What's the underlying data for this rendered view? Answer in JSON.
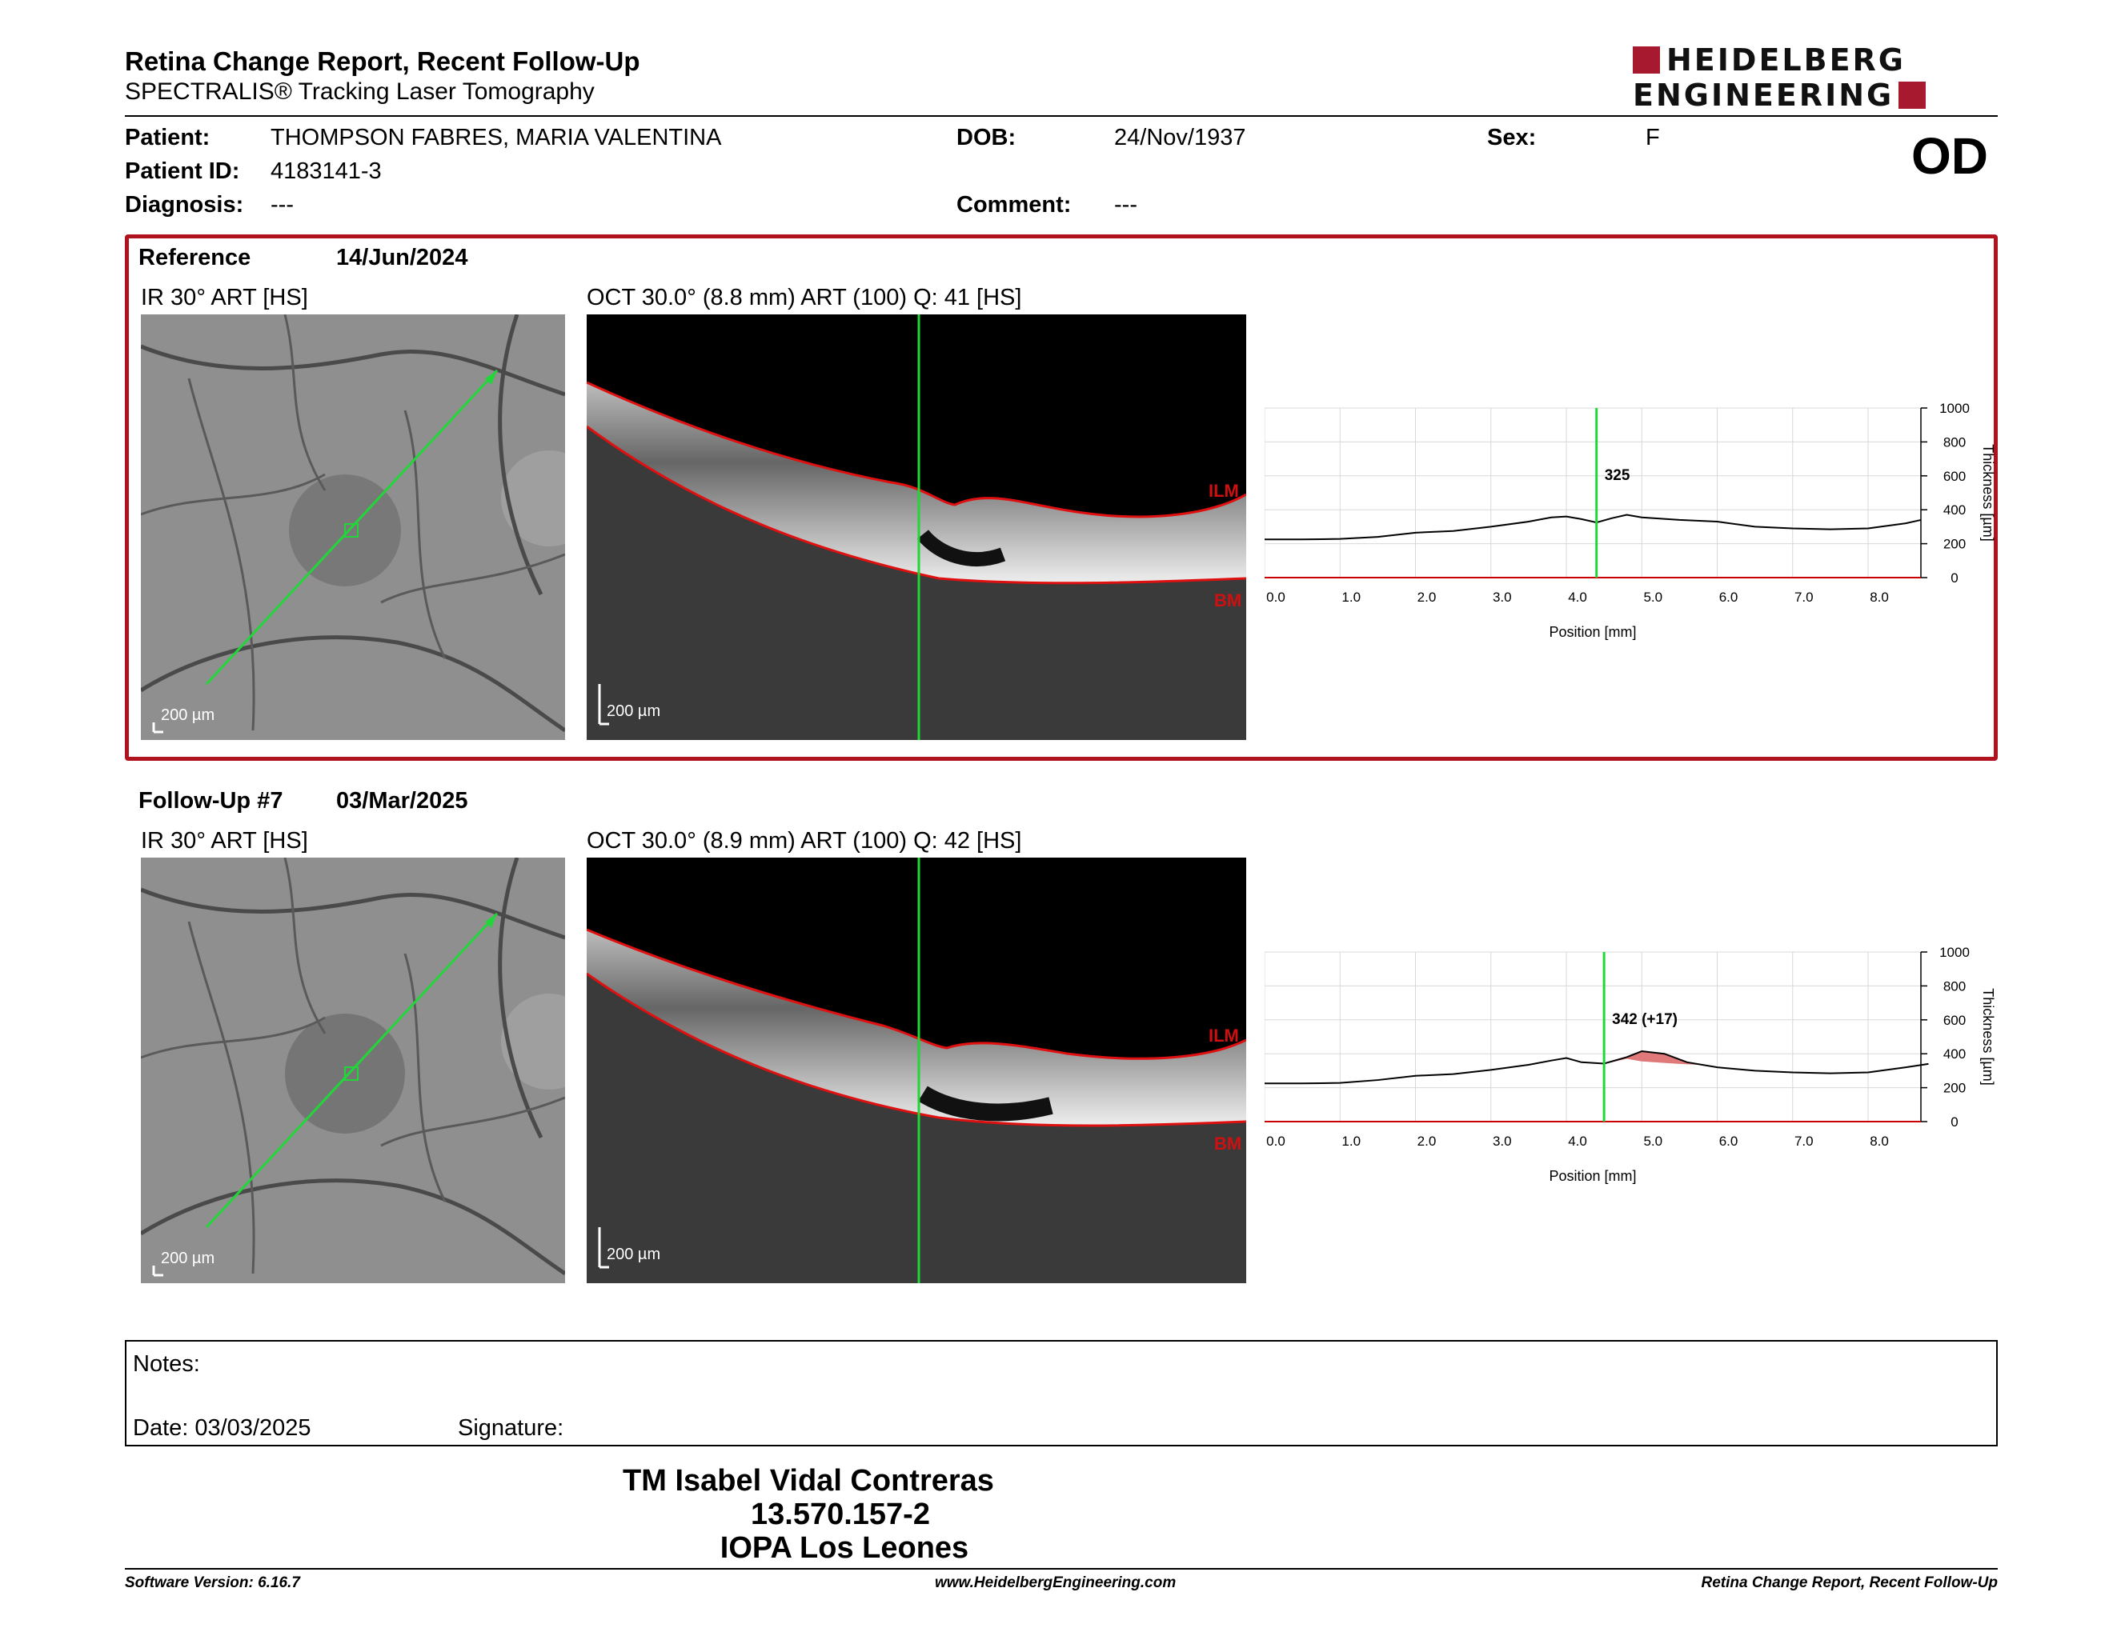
{
  "header": {
    "title": "Retina Change Report, Recent Follow-Up",
    "subtitle": "SPECTRALIS® Tracking Laser Tomography",
    "logo_line1": "HEIDELBERG",
    "logo_line2": "ENGINEERING",
    "brand_color": "#a6192e"
  },
  "patient": {
    "patient_label": "Patient:",
    "patient_value": "THOMPSON FABRES, MARIA VALENTINA",
    "id_label": "Patient ID:",
    "id_value": "4183141-3",
    "diagnosis_label": "Diagnosis:",
    "diagnosis_value": "---",
    "dob_label": "DOB:",
    "dob_value": "24/Nov/1937",
    "comment_label": "Comment:",
    "comment_value": "---",
    "sex_label": "Sex:",
    "sex_value": "F",
    "eye": "OD"
  },
  "reference": {
    "label": "Reference",
    "date": "14/Jun/2024",
    "ir_title": "IR 30° ART [HS]",
    "oct_title": "OCT 30.0° (8.8 mm) ART (100) Q: 41 [HS]",
    "scale": "200 µm",
    "ilm": "ILM",
    "bm": "BM"
  },
  "followup": {
    "label": "Follow-Up #7",
    "date": "03/Mar/2025",
    "ir_title": "IR 30° ART [HS]",
    "oct_title": "OCT 30.0° (8.9 mm) ART (100) Q: 42 [HS]",
    "scale": "200 µm",
    "ilm": "ILM",
    "bm": "BM"
  },
  "chart_data": [
    {
      "type": "line",
      "xlabel": "Position [mm]",
      "ylabel": "Thickness [µm]",
      "xlim": [
        0,
        8.7
      ],
      "ylim": [
        0,
        1000
      ],
      "x_ticks": [
        "0.0",
        "1.0",
        "2.0",
        "3.0",
        "4.0",
        "5.0",
        "6.0",
        "7.0",
        "8.0"
      ],
      "y_ticks": [
        "0",
        "200",
        "400",
        "600",
        "800",
        "1000"
      ],
      "cursor_x": 4.4,
      "cursor_label": "325",
      "grid": true,
      "x": [
        0,
        0.5,
        1.0,
        1.5,
        2.0,
        2.5,
        3.0,
        3.5,
        3.8,
        4.0,
        4.2,
        4.4,
        4.6,
        4.8,
        5.0,
        5.5,
        6.0,
        6.5,
        7.0,
        7.5,
        8.0,
        8.5,
        8.7
      ],
      "values": [
        225,
        225,
        228,
        240,
        265,
        275,
        300,
        330,
        355,
        360,
        345,
        325,
        350,
        370,
        355,
        340,
        330,
        300,
        290,
        285,
        290,
        320,
        340
      ]
    },
    {
      "type": "line",
      "xlabel": "Position [mm]",
      "ylabel": "Thickness [µm]",
      "xlim": [
        0,
        8.8
      ],
      "ylim": [
        0,
        1000
      ],
      "x_ticks": [
        "0.0",
        "1.0",
        "2.0",
        "3.0",
        "4.0",
        "5.0",
        "6.0",
        "7.0",
        "8.0"
      ],
      "y_ticks": [
        "0",
        "200",
        "400",
        "600",
        "800",
        "1000"
      ],
      "cursor_x": 4.5,
      "cursor_label": "342 (+17)",
      "grid": true,
      "x": [
        0,
        0.5,
        1.0,
        1.5,
        2.0,
        2.5,
        3.0,
        3.5,
        3.8,
        4.0,
        4.2,
        4.5,
        4.8,
        5.0,
        5.3,
        5.6,
        6.0,
        6.5,
        7.0,
        7.5,
        8.0,
        8.5,
        8.8
      ],
      "values": [
        225,
        225,
        228,
        245,
        270,
        280,
        305,
        335,
        360,
        375,
        350,
        342,
        380,
        415,
        400,
        350,
        320,
        300,
        290,
        285,
        290,
        320,
        340
      ],
      "increase_color": "#e07a7a"
    }
  ],
  "notes": {
    "notes_label": "Notes:",
    "date_label": "Date: 03/03/2025",
    "signature_label": "Signature:"
  },
  "signature_block": {
    "name": "TM Isabel Vidal Contreras",
    "id": "13.570.157-2",
    "place": "IOPA Los Leones"
  },
  "footer": {
    "software": "Software Version: 6.16.7",
    "website": "www.HeidelbergEngineering.com",
    "report": "Retina Change Report, Recent Follow-Up"
  }
}
